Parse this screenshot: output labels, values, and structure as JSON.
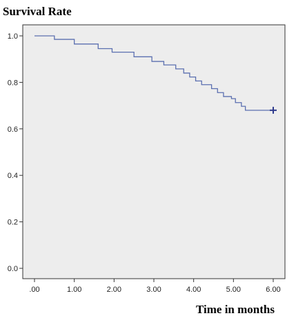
{
  "chart_data": {
    "type": "line",
    "title": "Survival Rate",
    "xlabel": "Time in months",
    "ylabel": "",
    "xlim": [
      0,
      6
    ],
    "ylim": [
      0,
      1
    ],
    "xticks": [
      ".00",
      "1.00",
      "2.00",
      "3.00",
      "4.00",
      "5.00",
      "6.00"
    ],
    "yticks": [
      "0.0",
      "0.2",
      "0.4",
      "0.6",
      "0.8",
      "1.0"
    ],
    "grid": false,
    "legend": "none",
    "series": [
      {
        "step": "post",
        "x": [
          0,
          0.5,
          1.0,
          1.6,
          1.95,
          2.5,
          2.95,
          3.25,
          3.55,
          3.75,
          3.9,
          4.05,
          4.2,
          4.45,
          4.6,
          4.75,
          4.95,
          5.05,
          5.2,
          5.3,
          6.0
        ],
        "y": [
          1.0,
          0.985,
          0.965,
          0.945,
          0.93,
          0.91,
          0.89,
          0.875,
          0.858,
          0.84,
          0.823,
          0.806,
          0.79,
          0.773,
          0.756,
          0.739,
          0.73,
          0.713,
          0.697,
          0.68,
          0.68
        ],
        "censored": [
          {
            "x": 6.0,
            "y": 0.68
          }
        ]
      }
    ],
    "colors": {
      "line": "#5b6fb0",
      "censor_mark": "#2e3a8c",
      "plot_background": "#ededed",
      "frame": "#333333"
    }
  }
}
